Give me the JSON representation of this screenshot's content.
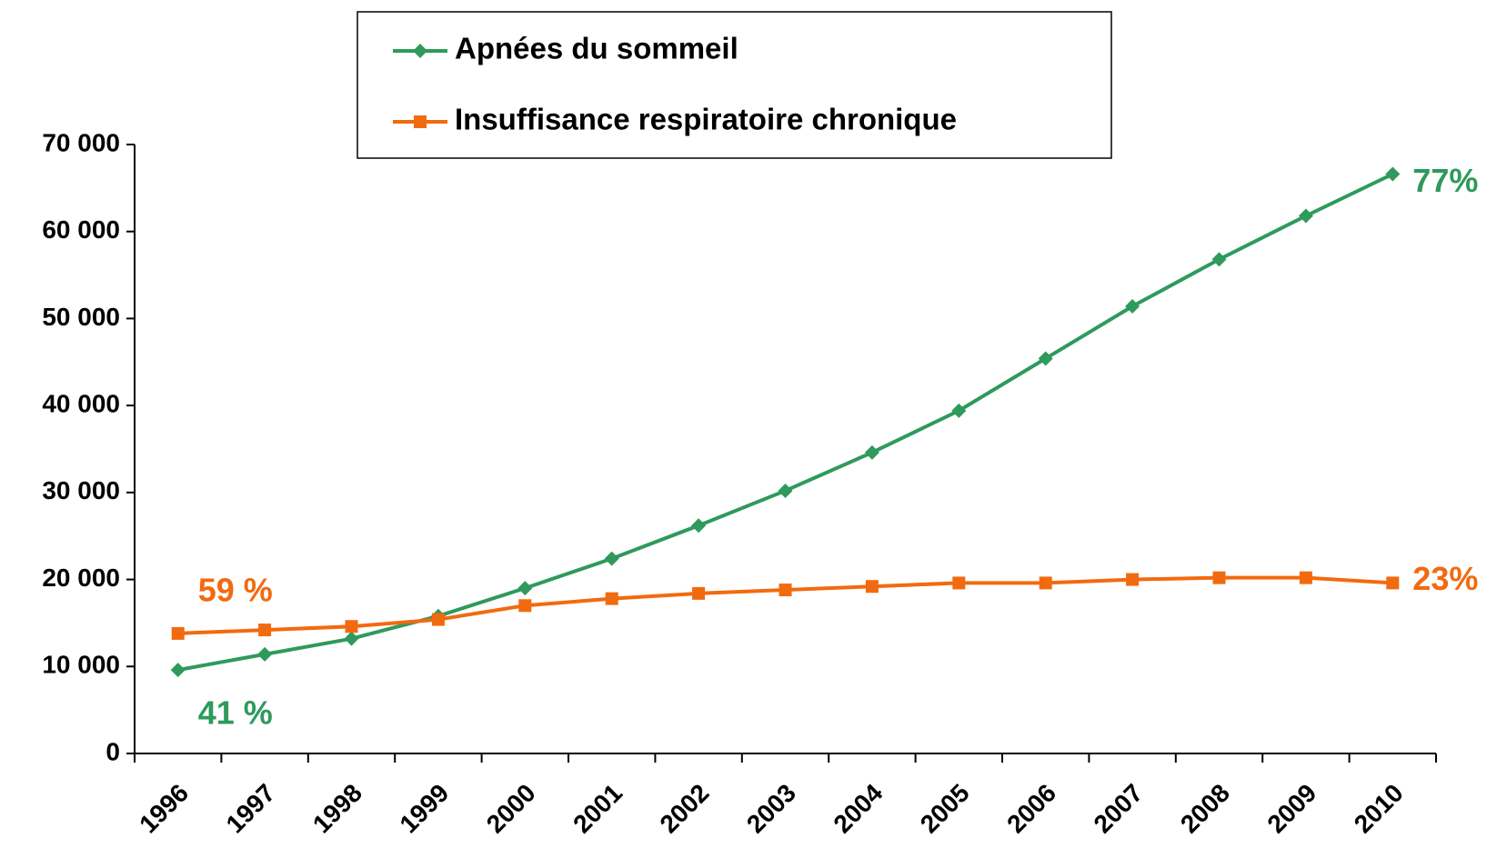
{
  "chart_data": {
    "type": "line",
    "categories": [
      "1996",
      "1997",
      "1998",
      "1999",
      "2000",
      "2001",
      "2002",
      "2003",
      "2004",
      "2005",
      "2006",
      "2007",
      "2008",
      "2009",
      "2010"
    ],
    "series": [
      {
        "name": "Apnées du sommeil",
        "color": "#2e9a5c",
        "marker": "diamond",
        "values": [
          9600,
          11400,
          13200,
          15800,
          19000,
          22400,
          26200,
          30200,
          34600,
          39400,
          45400,
          51400,
          56800,
          61800,
          66600
        ],
        "start_label": "41 %",
        "end_label": "77%"
      },
      {
        "name": "Insuffisance respiratoire chronique",
        "color": "#f26a10",
        "marker": "square",
        "values": [
          13800,
          14200,
          14600,
          15400,
          17000,
          17800,
          18400,
          18800,
          19200,
          19600,
          19600,
          20000,
          20200,
          20200,
          19600
        ],
        "start_label": "59 %",
        "end_label": "23%"
      }
    ],
    "ylim": [
      0,
      70000
    ],
    "yticks": [
      0,
      {
        "value": 10000,
        "label": "10 000"
      },
      {
        "value": 20000,
        "label": "20 000"
      },
      {
        "value": 30000,
        "label": "30 000"
      },
      {
        "value": 40000,
        "label": "40 000"
      },
      {
        "value": 50000,
        "label": "50 000"
      },
      {
        "value": 60000,
        "label": "60 000"
      },
      {
        "value": 70000,
        "label": "70 000"
      }
    ],
    "grid": false,
    "legend": "top"
  }
}
